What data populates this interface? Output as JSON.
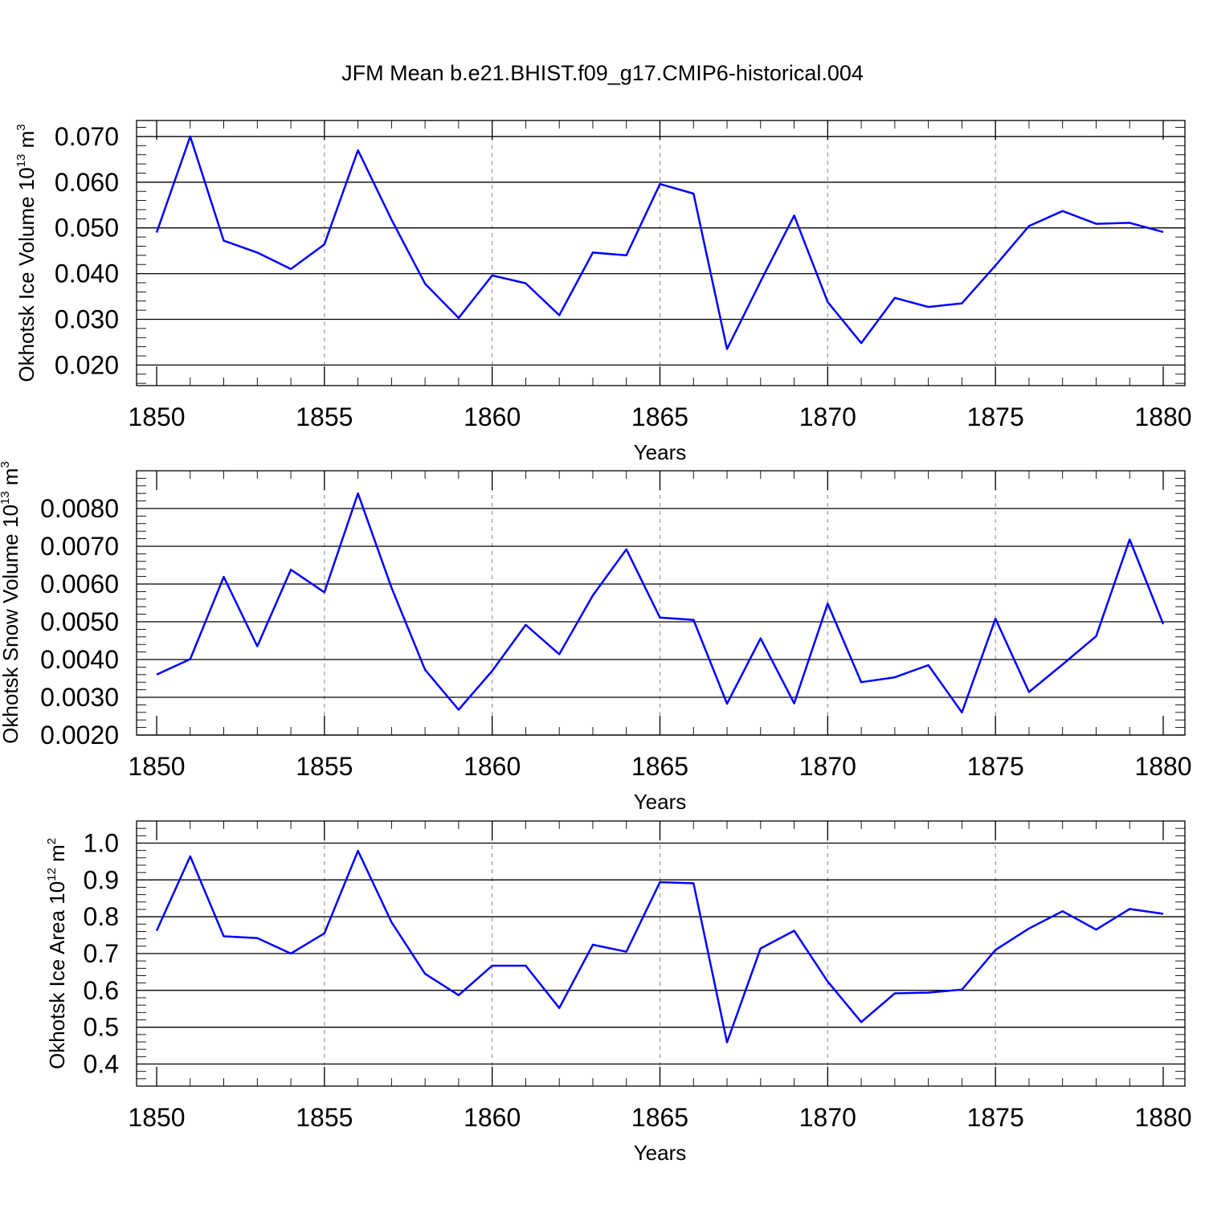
{
  "title": "JFM Mean b.e21.BHIST.f09_g17.CMIP6-historical.004",
  "colors": {
    "line": "#0000ff",
    "grid": "#9a9a9a",
    "axis": "#000000"
  },
  "chart_data": [
    {
      "type": "line",
      "xlabel": "Years",
      "ylabel": {
        "base": "Okhotsk Ice Volume 10",
        "exp": "13",
        "unit": " m",
        "unit_exp": "3"
      },
      "xlim": [
        1850,
        1880
      ],
      "ylim": [
        0.0155,
        0.0735
      ],
      "xticks": [
        1850,
        1855,
        1860,
        1865,
        1870,
        1875,
        1880
      ],
      "xtick_labels": [
        "1850",
        "1855",
        "1860",
        "1865",
        "1870",
        "1875",
        "1880"
      ],
      "yticks": [
        0.02,
        0.03,
        0.04,
        0.05,
        0.06,
        0.07
      ],
      "ytick_labels": [
        "0.020",
        "0.030",
        "0.040",
        "0.050",
        "0.060",
        "0.070"
      ],
      "grid": "vertical dashed",
      "x": [
        1850,
        1851,
        1852,
        1853,
        1854,
        1855,
        1856,
        1857,
        1858,
        1859,
        1860,
        1861,
        1862,
        1863,
        1864,
        1865,
        1866,
        1867,
        1868,
        1869,
        1870,
        1871,
        1872,
        1873,
        1874,
        1875,
        1876,
        1877,
        1878,
        1879,
        1880
      ],
      "y": [
        0.049,
        0.07,
        0.0472,
        0.0446,
        0.041,
        0.0464,
        0.067,
        0.0518,
        0.0378,
        0.0303,
        0.0396,
        0.0379,
        0.0309,
        0.0446,
        0.044,
        0.0596,
        0.0575,
        0.0235,
        0.0383,
        0.0527,
        0.0338,
        0.0248,
        0.0347,
        0.0327,
        0.0335,
        0.0418,
        0.0504,
        0.0537,
        0.0509,
        0.0511,
        0.0491
      ]
    },
    {
      "type": "line",
      "xlabel": "Years",
      "ylabel": {
        "base": "Okhotsk Snow Volume 10",
        "exp": "13",
        "unit": " m",
        "unit_exp": "3"
      },
      "xlim": [
        1850,
        1880
      ],
      "ylim": [
        0.002,
        0.009
      ],
      "xticks": [
        1850,
        1855,
        1860,
        1865,
        1870,
        1875,
        1880
      ],
      "xtick_labels": [
        "1850",
        "1855",
        "1860",
        "1865",
        "1870",
        "1875",
        "1880"
      ],
      "yticks": [
        0.002,
        0.003,
        0.004,
        0.005,
        0.006,
        0.007,
        0.008
      ],
      "ytick_labels": [
        "0.0020",
        "0.0030",
        "0.0040",
        "0.0050",
        "0.0060",
        "0.0070",
        "0.0080"
      ],
      "grid": "vertical dashed",
      "x": [
        1850,
        1851,
        1852,
        1853,
        1854,
        1855,
        1856,
        1857,
        1858,
        1859,
        1860,
        1861,
        1862,
        1863,
        1864,
        1865,
        1866,
        1867,
        1868,
        1869,
        1870,
        1871,
        1872,
        1873,
        1874,
        1875,
        1876,
        1877,
        1878,
        1879,
        1880
      ],
      "y": [
        0.0036,
        0.00401,
        0.00619,
        0.00435,
        0.00638,
        0.00578,
        0.0084,
        0.0059,
        0.00373,
        0.00267,
        0.0037,
        0.00492,
        0.00414,
        0.0057,
        0.00692,
        0.00511,
        0.00505,
        0.00283,
        0.00456,
        0.00284,
        0.00548,
        0.0034,
        0.00353,
        0.00385,
        0.0026,
        0.00508,
        0.00314,
        0.00387,
        0.00462,
        0.00718,
        0.00494
      ]
    },
    {
      "type": "line",
      "xlabel": "Years",
      "ylabel": {
        "base": "Okhotsk Ice Area 10",
        "exp": "12",
        "unit": " m",
        "unit_exp": "2"
      },
      "xlim": [
        1850,
        1880
      ],
      "ylim": [
        0.34,
        1.06
      ],
      "xticks": [
        1850,
        1855,
        1860,
        1865,
        1870,
        1875,
        1880
      ],
      "xtick_labels": [
        "1850",
        "1855",
        "1860",
        "1865",
        "1870",
        "1875",
        "1880"
      ],
      "yticks": [
        0.4,
        0.5,
        0.6,
        0.7,
        0.8,
        0.9,
        1.0
      ],
      "ytick_labels": [
        "0.4",
        "0.5",
        "0.6",
        "0.7",
        "0.8",
        "0.9",
        "1.0"
      ],
      "grid": "vertical dashed",
      "x": [
        1850,
        1851,
        1852,
        1853,
        1854,
        1855,
        1856,
        1857,
        1858,
        1859,
        1860,
        1861,
        1862,
        1863,
        1864,
        1865,
        1866,
        1867,
        1868,
        1869,
        1870,
        1871,
        1872,
        1873,
        1874,
        1875,
        1876,
        1877,
        1878,
        1879,
        1880
      ],
      "y": [
        0.762,
        0.964,
        0.747,
        0.742,
        0.7,
        0.755,
        0.979,
        0.785,
        0.645,
        0.587,
        0.667,
        0.667,
        0.552,
        0.724,
        0.705,
        0.894,
        0.891,
        0.459,
        0.714,
        0.762,
        0.624,
        0.514,
        0.592,
        0.594,
        0.602,
        0.71,
        0.768,
        0.815,
        0.765,
        0.821,
        0.808
      ]
    }
  ]
}
